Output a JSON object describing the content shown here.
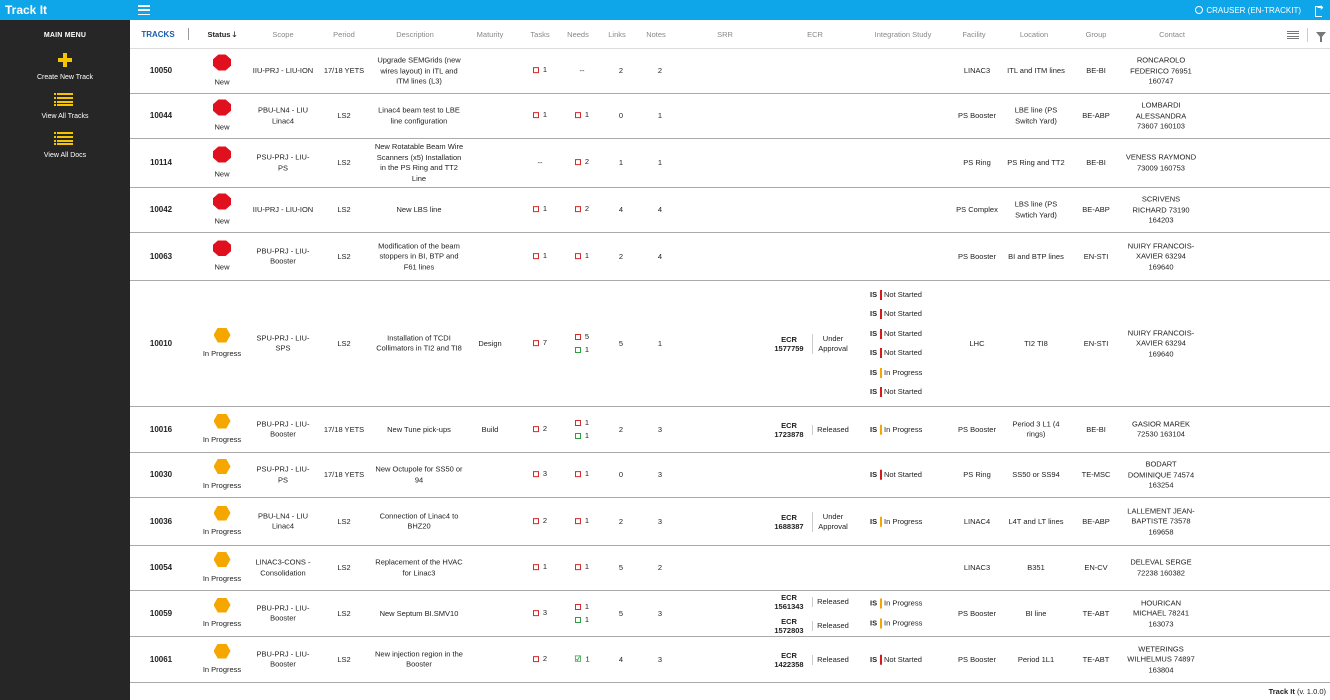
{
  "app": {
    "title": "Track It",
    "user": "CRAUSER (EN-TRACKIT)"
  },
  "sidebar": {
    "title": "MAIN MENU",
    "items": [
      {
        "label": "Create New Track",
        "icon": "plus-icon"
      },
      {
        "label": "View All Tracks",
        "icon": "list-icon"
      },
      {
        "label": "View All Docs",
        "icon": "list-icon"
      }
    ]
  },
  "columns": {
    "tracks": "TRACKS",
    "status": "Status",
    "scope": "Scope",
    "period": "Period",
    "description": "Description",
    "maturity": "Maturity",
    "tasks": "Tasks",
    "needs": "Needs",
    "links": "Links",
    "notes": "Notes",
    "srr": "SRR",
    "ecr": "ECR",
    "integration": "Integration Study",
    "facility": "Facility",
    "location": "Location",
    "group": "Group",
    "contact": "Contact"
  },
  "colors": {
    "accent": "#0ea5e9",
    "new": "#e0101e",
    "in_progress": "#f5a700",
    "sidebar": "#262626"
  },
  "rows": [
    {
      "id": "10050",
      "status": "New",
      "scope": "IIU-PRJ - LIU-ION",
      "period": "17/18 YETS",
      "description": "Upgrade SEMGrids (new wires layout) in ITL and ITM lines (L3)",
      "maturity": "",
      "tasks": "1",
      "needs": "--",
      "links": "2",
      "notes": "2",
      "ecr": [],
      "is": [],
      "facility": "LINAC3",
      "location": "ITL and ITM lines",
      "group": "BE-BI",
      "contact": "RONCAROLO FEDERICO 76951 160747"
    },
    {
      "id": "10044",
      "status": "New",
      "scope": "PBU-LN4 - LIU Linac4",
      "period": "LS2",
      "description": "Linac4 beam test to LBE line configuration",
      "maturity": "",
      "tasks": "1",
      "needs": "1",
      "links": "0",
      "notes": "1",
      "ecr": [],
      "is": [],
      "facility": "PS Booster",
      "location": "LBE line (PS Switch Yard)",
      "group": "BE-ABP",
      "contact": "LOMBARDI ALESSANDRA 73607 160103"
    },
    {
      "id": "10114",
      "status": "New",
      "scope": "PSU-PRJ - LIU-PS",
      "period": "LS2",
      "description": "New Rotatable Beam Wire Scanners (x5) Installation in the PS Ring and TT2 Line",
      "maturity": "",
      "tasks": "--",
      "needs": "2",
      "links": "1",
      "notes": "1",
      "ecr": [],
      "is": [],
      "facility": "PS Ring",
      "location": "PS Ring and TT2",
      "group": "BE-BI",
      "contact": "VENESS RAYMOND 73009 160753"
    },
    {
      "id": "10042",
      "status": "New",
      "scope": "IIU-PRJ - LIU-ION",
      "period": "LS2",
      "description": "New LBS line",
      "maturity": "",
      "tasks": "1",
      "needs": "2",
      "links": "4",
      "notes": "4",
      "ecr": [],
      "is": [],
      "facility": "PS Complex",
      "location": "LBS line (PS Swtich Yard)",
      "group": "BE-ABP",
      "contact": "SCRIVENS RICHARD 73190 164203"
    },
    {
      "id": "10063",
      "status": "New",
      "scope": "PBU-PRJ - LIU-Booster",
      "period": "LS2",
      "description": "Modification of the beam stoppers in BI, BTP and F61 lines",
      "maturity": "",
      "tasks": "1",
      "needs": "1",
      "links": "2",
      "notes": "4",
      "ecr": [],
      "is": [],
      "facility": "PS Booster",
      "location": "BI and BTP lines",
      "group": "EN-STI",
      "contact": "NUIRY FRANCOIS-XAVIER 63294 169640"
    },
    {
      "id": "10010",
      "status": "In Progress",
      "scope": "SPU-PRJ - LIU-SPS",
      "period": "LS2",
      "description": "Installation of TCDI Collimators in TI2 and TI8",
      "maturity": "Design",
      "tasks": "7",
      "needs": "5",
      "needs2": "1",
      "links": "5",
      "notes": "1",
      "ecr": [
        {
          "id": "ECR 1577759",
          "state": "Under Approval"
        }
      ],
      "is": [
        {
          "label": "IS",
          "state": "Not Started"
        },
        {
          "label": "IS",
          "state": "Not Started"
        },
        {
          "label": "IS",
          "state": "Not Started"
        },
        {
          "label": "IS",
          "state": "Not Started"
        },
        {
          "label": "IS",
          "state": "In Progress"
        },
        {
          "label": "IS",
          "state": "Not Started"
        }
      ],
      "facility": "LHC",
      "location": "TI2 TI8",
      "group": "EN-STI",
      "contact": "NUIRY FRANCOIS-XAVIER 63294 169640"
    },
    {
      "id": "10016",
      "status": "In Progress",
      "scope": "PBU-PRJ - LIU-Booster",
      "period": "17/18 YETS",
      "description": "New Tune pick-ups",
      "maturity": "Build",
      "tasks": "2",
      "needs": "1",
      "needs2": "1",
      "links": "2",
      "notes": "3",
      "ecr": [
        {
          "id": "ECR 1723878",
          "state": "Released"
        }
      ],
      "is": [
        {
          "label": "IS",
          "state": "In Progress"
        }
      ],
      "facility": "PS Booster",
      "location": "Period 3 L1 (4 rings)",
      "group": "BE-BI",
      "contact": "GASIOR MAREK 72530 163104"
    },
    {
      "id": "10030",
      "status": "In Progress",
      "scope": "PSU-PRJ - LIU-PS",
      "period": "17/18 YETS",
      "description": "New Octupole for SS50 or 94",
      "maturity": "",
      "tasks": "3",
      "needs": "1",
      "links": "0",
      "notes": "3",
      "ecr": [],
      "is": [
        {
          "label": "IS",
          "state": "Not Started"
        }
      ],
      "facility": "PS Ring",
      "location": "SS50 or SS94",
      "group": "TE-MSC",
      "contact": "BODART DOMINIQUE 74574 163254"
    },
    {
      "id": "10036",
      "status": "In Progress",
      "scope": "PBU-LN4 - LIU Linac4",
      "period": "LS2",
      "description": "Connection of Linac4 to BHZ20",
      "maturity": "",
      "tasks": "2",
      "needs": "1",
      "links": "2",
      "notes": "3",
      "ecr": [
        {
          "id": "ECR 1688387",
          "state": "Under Approval"
        }
      ],
      "is": [
        {
          "label": "IS",
          "state": "In Progress"
        }
      ],
      "facility": "LINAC4",
      "location": "L4T and LT lines",
      "group": "BE-ABP",
      "contact": "LALLEMENT JEAN-BAPTISTE 73578 169658"
    },
    {
      "id": "10054",
      "status": "In Progress",
      "scope": "LINAC3-CONS - Consolidation",
      "period": "LS2",
      "description": "Replacement of the HVAC for Linac3",
      "maturity": "",
      "tasks": "1",
      "needs": "1",
      "links": "5",
      "notes": "2",
      "ecr": [],
      "is": [],
      "facility": "LINAC3",
      "location": "B351",
      "group": "EN-CV",
      "contact": "DELEVAL SERGE 72238 160382"
    },
    {
      "id": "10059",
      "status": "In Progress",
      "scope": "PBU-PRJ - LIU-Booster",
      "period": "LS2",
      "description": "New Septum BI.SMV10",
      "maturity": "",
      "tasks": "3",
      "needs": "1",
      "needs2": "1",
      "links": "5",
      "notes": "3",
      "ecr": [
        {
          "id": "ECR 1561343",
          "state": "Released"
        },
        {
          "id": "ECR 1572803",
          "state": "Released"
        }
      ],
      "is": [
        {
          "label": "IS",
          "state": "In Progress"
        },
        {
          "label": "IS",
          "state": "In Progress"
        }
      ],
      "facility": "PS Booster",
      "location": "BI line",
      "group": "TE-ABT",
      "contact": "HOURICAN MICHAEL 78241 163073"
    },
    {
      "id": "10061",
      "status": "In Progress",
      "scope": "PBU-PRJ - LIU-Booster",
      "period": "LS2",
      "description": "New injection region in the Booster",
      "maturity": "",
      "tasks": "2",
      "needs": "1",
      "links": "4",
      "notes": "3",
      "ecr": [
        {
          "id": "ECR 1422358",
          "state": "Released"
        }
      ],
      "is": [
        {
          "label": "IS",
          "state": "Not Started"
        }
      ],
      "facility": "PS Booster",
      "location": "Period 1L1",
      "group": "TE-ABT",
      "contact": "WETERINGS WILHELMUS 74897 163804"
    }
  ],
  "footer": {
    "name": "Track It",
    "version": "(v. 1.0.0)"
  }
}
